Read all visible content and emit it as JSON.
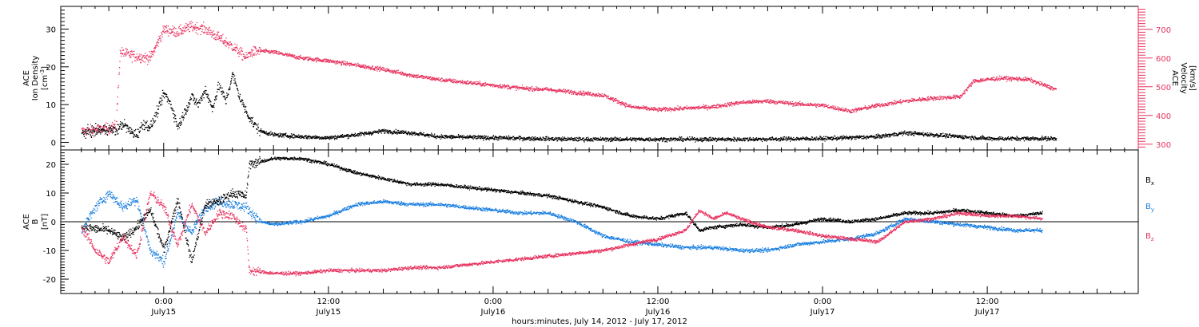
{
  "chart_data": [
    {
      "type": "scatter",
      "panel": "top",
      "left_axis": {
        "label_lines": [
          "ACE",
          "Ion Density"
        ],
        "unit_prefix": "[cm",
        "unit_sup": "-3",
        "unit_suffix": "]",
        "ylim": [
          -2,
          36
        ],
        "ticks": [
          0,
          10,
          20,
          30
        ]
      },
      "right_axis": {
        "label_lines": [
          "ACE",
          "Velocity"
        ],
        "unit": "[km/s]",
        "ylim": [
          280,
          780
        ],
        "ticks": [
          300,
          400,
          500,
          600,
          700
        ],
        "color": "#e8335f"
      },
      "series": [
        {
          "axis": "left",
          "color": "#000000",
          "keypoints": [
            [
              -6,
              2.5
            ],
            [
              -4,
              3.5
            ],
            [
              -3.5,
              3
            ],
            [
              -3,
              5
            ],
            [
              -2.5,
              3
            ],
            [
              -2,
              2
            ],
            [
              -1.5,
              5
            ],
            [
              -1,
              4
            ],
            [
              -0.5,
              8
            ],
            [
              0,
              13
            ],
            [
              0.5,
              10
            ],
            [
              1,
              4
            ],
            [
              1.5,
              8
            ],
            [
              2,
              12
            ],
            [
              2.5,
              10
            ],
            [
              3,
              14
            ],
            [
              3.5,
              9
            ],
            [
              4,
              15
            ],
            [
              4.5,
              11
            ],
            [
              5,
              18
            ],
            [
              5.5,
              12
            ],
            [
              6,
              8
            ],
            [
              6.5,
              5
            ],
            [
              7,
              3
            ],
            [
              8,
              2
            ],
            [
              10,
              1.5
            ],
            [
              12,
              1.2
            ],
            [
              14,
              2
            ],
            [
              16,
              3
            ],
            [
              18,
              2.5
            ],
            [
              20,
              1.5
            ],
            [
              24,
              1.2
            ],
            [
              30,
              0.8
            ],
            [
              36,
              0.8
            ],
            [
              42,
              0.8
            ],
            [
              48,
              1
            ],
            [
              52,
              1.5
            ],
            [
              54,
              2.5
            ],
            [
              56,
              2
            ],
            [
              60,
              1
            ],
            [
              65,
              1
            ]
          ]
        },
        {
          "axis": "right",
          "color": "#e8335f",
          "keypoints": [
            [
              -6,
              345
            ],
            [
              -4,
              355
            ],
            [
              -3.5,
              365
            ],
            [
              -3.2,
              620
            ],
            [
              -2,
              605
            ],
            [
              -1,
              600
            ],
            [
              0,
              700
            ],
            [
              1,
              690
            ],
            [
              2,
              710
            ],
            [
              3,
              700
            ],
            [
              4,
              670
            ],
            [
              5,
              640
            ],
            [
              6,
              600
            ],
            [
              6.3,
              620
            ],
            [
              7,
              625
            ],
            [
              8,
              620
            ],
            [
              10,
              600
            ],
            [
              12,
              590
            ],
            [
              14,
              575
            ],
            [
              16,
              560
            ],
            [
              18,
              540
            ],
            [
              20,
              525
            ],
            [
              22,
              515
            ],
            [
              24,
              505
            ],
            [
              26,
              495
            ],
            [
              28,
              490
            ],
            [
              30,
              480
            ],
            [
              32,
              470
            ],
            [
              34,
              430
            ],
            [
              36,
              420
            ],
            [
              38,
              425
            ],
            [
              40,
              430
            ],
            [
              42,
              445
            ],
            [
              44,
              450
            ],
            [
              46,
              440
            ],
            [
              48,
              435
            ],
            [
              50,
              415
            ],
            [
              52,
              435
            ],
            [
              54,
              450
            ],
            [
              56,
              460
            ],
            [
              58,
              465
            ],
            [
              59,
              520
            ],
            [
              61,
              530
            ],
            [
              63,
              525
            ],
            [
              65,
              490
            ]
          ]
        }
      ]
    },
    {
      "type": "scatter",
      "panel": "bottom",
      "left_axis": {
        "label_lines": [
          "ACE",
          "B"
        ],
        "unit": "[nT]",
        "ylim": [
          -25,
          25
        ],
        "ticks": [
          -20,
          -10,
          0,
          10,
          20
        ]
      },
      "zero_line": true,
      "series": [
        {
          "name": "B",
          "sub": "x",
          "color": "#000000",
          "keypoints": [
            [
              -6,
              -2
            ],
            [
              -4,
              -3
            ],
            [
              -3,
              -6
            ],
            [
              -2,
              -2
            ],
            [
              -1,
              4
            ],
            [
              0,
              -10
            ],
            [
              1,
              8
            ],
            [
              2,
              -14
            ],
            [
              3,
              6
            ],
            [
              4,
              7
            ],
            [
              5,
              10
            ],
            [
              6,
              9
            ],
            [
              6.2,
              20
            ],
            [
              8,
              22
            ],
            [
              10,
              22
            ],
            [
              12,
              20
            ],
            [
              14,
              17
            ],
            [
              16,
              15
            ],
            [
              18,
              13
            ],
            [
              20,
              13
            ],
            [
              22,
              12
            ],
            [
              24,
              11
            ],
            [
              26,
              10
            ],
            [
              28,
              9
            ],
            [
              30,
              7
            ],
            [
              32,
              5
            ],
            [
              34,
              2
            ],
            [
              36,
              1
            ],
            [
              38,
              3
            ],
            [
              39,
              -3
            ],
            [
              40,
              -2
            ],
            [
              42,
              -1
            ],
            [
              44,
              -2
            ],
            [
              46,
              -1
            ],
            [
              48,
              1
            ],
            [
              50,
              0
            ],
            [
              52,
              1
            ],
            [
              54,
              3
            ],
            [
              56,
              3
            ],
            [
              58,
              4
            ],
            [
              60,
              3
            ],
            [
              62,
              2
            ],
            [
              64,
              3
            ]
          ]
        },
        {
          "name": "B",
          "sub": "y",
          "color": "#1a7fe0",
          "keypoints": [
            [
              -6,
              -3
            ],
            [
              -5,
              5
            ],
            [
              -4,
              10
            ],
            [
              -3,
              5
            ],
            [
              -2,
              8
            ],
            [
              -1,
              -10
            ],
            [
              0,
              -14
            ],
            [
              1,
              3
            ],
            [
              2,
              -4
            ],
            [
              3,
              5
            ],
            [
              4,
              7
            ],
            [
              5,
              6
            ],
            [
              6,
              5
            ],
            [
              7,
              0
            ],
            [
              8,
              -1
            ],
            [
              10,
              0
            ],
            [
              12,
              2
            ],
            [
              14,
              6
            ],
            [
              16,
              7
            ],
            [
              18,
              6
            ],
            [
              20,
              6
            ],
            [
              22,
              5
            ],
            [
              24,
              4
            ],
            [
              26,
              3
            ],
            [
              28,
              3
            ],
            [
              30,
              0
            ],
            [
              32,
              -5
            ],
            [
              34,
              -7
            ],
            [
              36,
              -8
            ],
            [
              38,
              -9
            ],
            [
              40,
              -9
            ],
            [
              42,
              -10
            ],
            [
              44,
              -10
            ],
            [
              46,
              -8
            ],
            [
              48,
              -7
            ],
            [
              50,
              -6
            ],
            [
              52,
              -4
            ],
            [
              54,
              1
            ],
            [
              56,
              0
            ],
            [
              58,
              -1
            ],
            [
              60,
              -2
            ],
            [
              62,
              -3
            ],
            [
              64,
              -3
            ]
          ]
        },
        {
          "name": "B",
          "sub": "z",
          "color": "#e8335f",
          "keypoints": [
            [
              -6,
              -2
            ],
            [
              -5,
              -10
            ],
            [
              -4,
              -14
            ],
            [
              -3,
              -5
            ],
            [
              -2,
              -12
            ],
            [
              -1,
              10
            ],
            [
              0,
              5
            ],
            [
              1,
              -8
            ],
            [
              2,
              6
            ],
            [
              3,
              -4
            ],
            [
              4,
              3
            ],
            [
              5,
              2
            ],
            [
              6,
              -3
            ],
            [
              6.2,
              -17
            ],
            [
              8,
              -18
            ],
            [
              10,
              -18
            ],
            [
              12,
              -17
            ],
            [
              14,
              -17
            ],
            [
              16,
              -17
            ],
            [
              18,
              -16
            ],
            [
              20,
              -16
            ],
            [
              22,
              -15
            ],
            [
              24,
              -14
            ],
            [
              26,
              -13
            ],
            [
              28,
              -12
            ],
            [
              30,
              -11
            ],
            [
              32,
              -10
            ],
            [
              34,
              -8
            ],
            [
              36,
              -6
            ],
            [
              38,
              -3
            ],
            [
              39,
              4
            ],
            [
              40,
              1
            ],
            [
              41,
              3
            ],
            [
              42,
              1
            ],
            [
              44,
              -2
            ],
            [
              46,
              -3
            ],
            [
              48,
              -5
            ],
            [
              50,
              -6
            ],
            [
              52,
              -7
            ],
            [
              54,
              0
            ],
            [
              56,
              1
            ],
            [
              58,
              3
            ],
            [
              60,
              2
            ],
            [
              62,
              2
            ],
            [
              64,
              1
            ]
          ]
        }
      ]
    }
  ],
  "x_axis": {
    "title": "hours:minutes, July 14, 2012 - July 17, 2012",
    "xlim_hours": [
      -7.5,
      71
    ],
    "major_ticks": [
      {
        "hours": 0,
        "time": "0:00",
        "day": "July15"
      },
      {
        "hours": 12,
        "time": "12:00",
        "day": "July15"
      },
      {
        "hours": 24,
        "time": "0:00",
        "day": "July16"
      },
      {
        "hours": 36,
        "time": "12:00",
        "day": "July16"
      },
      {
        "hours": 48,
        "time": "0:00",
        "day": "July17"
      },
      {
        "hours": 60,
        "time": "12:00",
        "day": "July17"
      }
    ]
  }
}
